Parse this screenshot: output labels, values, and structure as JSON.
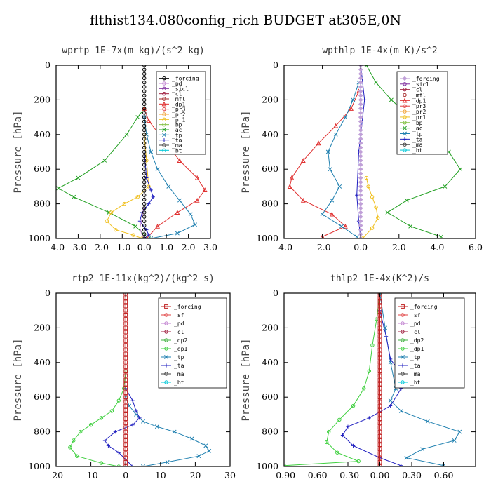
{
  "page": {
    "title": "flthist134.080config_rich  BUDGET at305E,0N"
  },
  "chart_data": [
    {
      "type": "line",
      "title": "wprtp  1E-7x(m kg)/(s^2 kg)",
      "xlabel": "",
      "ylabel": "Pressure [hPa]",
      "xlim": [
        -4.0,
        3.0
      ],
      "ylim": [
        1000,
        0
      ],
      "xticks": [
        -4.0,
        -3.0,
        -2.0,
        -1.0,
        0.0,
        1.0,
        2.0,
        3.0
      ],
      "xtick_labels": [
        "-4.0",
        "-3.0",
        "-2.0",
        "-1.0",
        "0.0",
        "1.0",
        "2.0",
        "3.0"
      ],
      "yticks": [
        0,
        200,
        400,
        600,
        800,
        1000
      ],
      "legend_entries": [
        "_forcing",
        "_pd",
        "_sicl",
        "_cl",
        "_mfl",
        "_dp1",
        "_pr3",
        "_pr2",
        "_pr1",
        "_bp",
        "_ac",
        "_tp",
        "_ta",
        "_ma",
        "_bt"
      ],
      "series": [
        {
          "name": "_ac",
          "color": "#22a022",
          "marker": "x",
          "x": [
            0.0,
            -0.3,
            -0.8,
            -1.8,
            -3.0,
            -3.9,
            -3.2,
            -1.6,
            -0.4,
            0.2
          ],
          "y": [
            250,
            300,
            400,
            550,
            650,
            710,
            760,
            850,
            930,
            1000
          ]
        },
        {
          "name": "_dp1",
          "color": "#e03030",
          "marker": "tri",
          "x": [
            0.0,
            0.2,
            0.8,
            1.6,
            2.4,
            2.75,
            2.4,
            1.5,
            0.6,
            0.1
          ],
          "y": [
            250,
            320,
            420,
            550,
            650,
            720,
            780,
            850,
            930,
            1000
          ]
        },
        {
          "name": "_tp",
          "color": "#2080b0",
          "marker": "x",
          "x": [
            0.0,
            0.1,
            0.3,
            0.6,
            1.1,
            1.6,
            2.1,
            2.3,
            1.5,
            0.3
          ],
          "y": [
            300,
            400,
            500,
            600,
            700,
            780,
            860,
            920,
            970,
            1000
          ]
        },
        {
          "name": "_pr1",
          "color": "#f0c020",
          "marker": "o",
          "x": [
            0.0,
            0.1,
            0.2,
            -0.3,
            -0.9,
            -1.5,
            -1.7,
            -1.3,
            -0.5,
            -0.1
          ],
          "y": [
            400,
            550,
            700,
            760,
            800,
            850,
            900,
            950,
            980,
            1000
          ]
        },
        {
          "name": "_ta",
          "color": "#2020c0",
          "marker": "plus",
          "x": [
            0.0,
            0.1,
            0.3,
            0.4,
            0.2,
            -0.1,
            -0.2,
            0.1,
            0.2,
            0.0
          ],
          "y": [
            500,
            650,
            720,
            760,
            800,
            850,
            900,
            950,
            980,
            1000
          ]
        },
        {
          "name": "_pd",
          "color": "#c080d0",
          "marker": "none",
          "x": [
            0.0,
            0.0,
            -0.1,
            -0.2,
            -0.1,
            0.0
          ],
          "y": [
            600,
            800,
            880,
            940,
            980,
            1000
          ]
        },
        {
          "name": "_forcing",
          "color": "#000000",
          "marker": "o",
          "x": [
            0,
            0,
            0,
            0,
            0,
            0,
            0,
            0,
            0,
            0,
            0,
            0,
            0,
            0,
            0,
            0,
            0,
            0,
            0,
            0,
            0,
            0,
            0,
            0,
            0,
            0,
            0,
            0,
            0,
            0,
            0,
            0,
            0,
            0,
            0,
            0,
            0,
            0,
            0,
            0,
            0
          ],
          "y": [
            0,
            25,
            50,
            75,
            100,
            125,
            150,
            175,
            200,
            225,
            250,
            275,
            300,
            325,
            350,
            375,
            400,
            425,
            450,
            475,
            500,
            525,
            550,
            575,
            600,
            625,
            650,
            675,
            700,
            725,
            750,
            775,
            800,
            825,
            850,
            875,
            900,
            925,
            950,
            975,
            1000
          ]
        }
      ]
    },
    {
      "type": "line",
      "title": "wpthlp  1E-4x(m K)/s^2",
      "xlabel": "",
      "ylabel": "Pressure [hPa]",
      "xlim": [
        -4.0,
        6.0
      ],
      "ylim": [
        1000,
        0
      ],
      "xticks": [
        -4.0,
        -2.0,
        0.0,
        2.0,
        4.0,
        6.0
      ],
      "xtick_labels": [
        "-4.0",
        "-2.0",
        "0.0",
        "2.0",
        "4.0",
        "6.0"
      ],
      "yticks": [
        0,
        200,
        400,
        600,
        800,
        1000
      ],
      "legend_entries": [
        "_forcing",
        "_sicl",
        "_cl",
        "_mfl",
        "_dp1",
        "_pr3",
        "_pr2",
        "_pr1",
        "_bp",
        "_ac",
        "_tp",
        "_ta",
        "_ma",
        "_bt"
      ],
      "series": [
        {
          "name": "_ac",
          "color": "#22a022",
          "marker": "x",
          "x": [
            0.3,
            0.8,
            1.6,
            2.6,
            3.6,
            4.6,
            5.2,
            4.4,
            2.4,
            1.4,
            2.6,
            4.2
          ],
          "y": [
            0,
            100,
            200,
            300,
            400,
            500,
            600,
            700,
            780,
            850,
            930,
            990
          ]
        },
        {
          "name": "_dp1",
          "color": "#e03030",
          "marker": "tri",
          "x": [
            -0.1,
            -0.5,
            -1.3,
            -2.2,
            -3.0,
            -3.6,
            -3.7,
            -3.0,
            -1.5,
            -0.8,
            -2.0
          ],
          "y": [
            150,
            250,
            350,
            450,
            550,
            650,
            700,
            780,
            860,
            930,
            990
          ]
        },
        {
          "name": "_tp",
          "color": "#2080b0",
          "marker": "x",
          "x": [
            -0.1,
            -0.4,
            -0.8,
            -1.3,
            -1.7,
            -1.6,
            -1.1,
            -1.5,
            -2.0,
            -1.0,
            -0.2
          ],
          "y": [
            100,
            200,
            300,
            400,
            500,
            600,
            700,
            780,
            860,
            930,
            990
          ]
        },
        {
          "name": "_pr1",
          "color": "#f0c020",
          "marker": "o",
          "x": [
            0.3,
            0.4,
            0.6,
            0.8,
            0.9,
            0.6,
            0.1
          ],
          "y": [
            650,
            700,
            760,
            820,
            880,
            940,
            1000
          ]
        },
        {
          "name": "_ta",
          "color": "#2020c0",
          "marker": "plus",
          "x": [
            0.0,
            0.2,
            -0.1,
            -0.2,
            -0.1,
            0.0
          ],
          "y": [
            0,
            200,
            500,
            750,
            900,
            1000
          ]
        },
        {
          "name": "_bt",
          "color": "#00c8d8",
          "marker": "none",
          "x": [
            0,
            0,
            0,
            0,
            0
          ],
          "y": [
            0,
            250,
            500,
            750,
            1000
          ]
        },
        {
          "name": "_forcing",
          "color": "#c0a0d8",
          "marker": "diamond",
          "x": [
            0,
            0,
            0,
            0,
            0,
            0,
            0,
            0,
            0,
            0,
            0,
            0,
            0,
            0,
            0,
            0,
            0,
            0,
            0,
            0,
            0,
            0,
            0,
            0,
            0,
            0,
            0,
            0,
            0,
            0,
            0,
            0,
            0,
            0,
            0,
            0,
            0,
            0,
            0,
            0,
            0
          ],
          "y": [
            0,
            25,
            50,
            75,
            100,
            125,
            150,
            175,
            200,
            225,
            250,
            275,
            300,
            325,
            350,
            375,
            400,
            425,
            450,
            475,
            500,
            525,
            550,
            575,
            600,
            625,
            650,
            675,
            700,
            725,
            750,
            775,
            800,
            825,
            850,
            875,
            900,
            925,
            950,
            975,
            1000
          ]
        }
      ]
    },
    {
      "type": "line",
      "title": "rtp2  1E-11x(kg^2)/(kg^2 s)",
      "xlabel": "",
      "ylabel": "Pressure [hPa]",
      "xlim": [
        -20,
        30
      ],
      "ylim": [
        1000,
        0
      ],
      "xticks": [
        -20,
        -10,
        0,
        10,
        20,
        30
      ],
      "xtick_labels": [
        "-20",
        "-10",
        "0",
        "10",
        "20",
        "30"
      ],
      "yticks": [
        0,
        200,
        400,
        600,
        800,
        1000
      ],
      "legend_entries": [
        "_forcing",
        "_sf",
        "_pd",
        "_cl",
        "_dp2",
        "_dp1",
        "_tp",
        "_ta",
        "_ma",
        "_bt"
      ],
      "series": [
        {
          "name": "_dp1",
          "color": "#40d040",
          "marker": "o",
          "x": [
            0,
            -0.5,
            -2,
            -4,
            -7,
            -10,
            -13,
            -15,
            -16,
            -14,
            -7,
            -2
          ],
          "y": [
            450,
            550,
            620,
            680,
            720,
            760,
            800,
            850,
            890,
            940,
            980,
            1000
          ]
        },
        {
          "name": "_tp",
          "color": "#2080b0",
          "marker": "x",
          "x": [
            0,
            1,
            3,
            5,
            9,
            14,
            19,
            23,
            24,
            21,
            12,
            5
          ],
          "y": [
            600,
            650,
            700,
            740,
            770,
            800,
            840,
            880,
            910,
            940,
            975,
            1000
          ]
        },
        {
          "name": "_ta",
          "color": "#2020c0",
          "marker": "plus",
          "x": [
            0,
            2,
            3,
            4,
            2,
            -3,
            -6,
            -5,
            -2,
            0,
            2
          ],
          "y": [
            550,
            620,
            680,
            720,
            760,
            800,
            850,
            880,
            920,
            960,
            1000
          ]
        },
        {
          "name": "_forcing",
          "color": "#c02020",
          "marker": "square",
          "x": [
            0,
            0,
            0,
            0,
            0,
            0,
            0,
            0,
            0,
            0,
            0,
            0,
            0,
            0,
            0,
            0,
            0,
            0,
            0,
            0,
            0,
            0,
            0,
            0,
            0,
            0,
            0,
            0,
            0,
            0,
            0,
            0,
            0,
            0,
            0,
            0,
            0,
            0,
            0,
            0,
            0
          ],
          "y": [
            0,
            25,
            50,
            75,
            100,
            125,
            150,
            175,
            200,
            225,
            250,
            275,
            300,
            325,
            350,
            375,
            400,
            425,
            450,
            475,
            500,
            525,
            550,
            575,
            600,
            625,
            650,
            675,
            700,
            725,
            750,
            775,
            800,
            825,
            850,
            875,
            900,
            925,
            950,
            975,
            1000
          ]
        }
      ]
    },
    {
      "type": "line",
      "title": "thlp2  1E-4x(K^2)/s",
      "xlabel": "",
      "ylabel": "Pressure [hPa]",
      "xlim": [
        -0.9,
        0.9
      ],
      "ylim": [
        1000,
        0
      ],
      "xticks": [
        -0.9,
        -0.6,
        -0.3,
        0.0,
        0.3,
        0.6
      ],
      "xtick_labels": [
        "-0.90",
        "-0.60",
        "-0.30",
        "0.00",
        "0.30",
        "0.60"
      ],
      "yticks": [
        0,
        200,
        400,
        600,
        800,
        1000
      ],
      "legend_entries": [
        "_forcing",
        "_sf",
        "_pd",
        "_cl",
        "_dp2",
        "_dp1",
        "_tp",
        "_ta",
        "_ma",
        "_bt"
      ],
      "series": [
        {
          "name": "_dp1",
          "color": "#40d040",
          "marker": "o",
          "x": [
            0.0,
            -0.03,
            -0.07,
            -0.1,
            -0.15,
            -0.25,
            -0.38,
            -0.48,
            -0.5,
            -0.4,
            -0.2,
            -0.9
          ],
          "y": [
            0,
            150,
            300,
            450,
            550,
            650,
            730,
            800,
            860,
            920,
            970,
            995
          ]
        },
        {
          "name": "_tp",
          "color": "#2080b0",
          "marker": "x",
          "x": [
            0.0,
            0.05,
            0.1,
            0.15,
            0.1,
            0.2,
            0.45,
            0.75,
            0.7,
            0.4,
            0.25,
            0.6
          ],
          "y": [
            0,
            200,
            400,
            550,
            620,
            680,
            740,
            800,
            850,
            900,
            950,
            995
          ]
        },
        {
          "name": "_ta",
          "color": "#2020c0",
          "marker": "plus",
          "x": [
            0.0,
            0.06,
            0.1,
            0.18,
            0.2,
            0.1,
            -0.1,
            -0.3,
            -0.35,
            -0.25,
            0.0,
            0.2
          ],
          "y": [
            100,
            250,
            380,
            450,
            550,
            650,
            720,
            770,
            820,
            880,
            950,
            995
          ]
        },
        {
          "name": "_forcing",
          "color": "#c02020",
          "marker": "square",
          "x": [
            0,
            0,
            0,
            0,
            0,
            0,
            0,
            0,
            0,
            0,
            0,
            0,
            0,
            0,
            0,
            0,
            0,
            0,
            0,
            0,
            0,
            0,
            0,
            0,
            0,
            0,
            0,
            0,
            0,
            0,
            0,
            0,
            0,
            0,
            0,
            0,
            0,
            0,
            0,
            0,
            0
          ],
          "y": [
            0,
            25,
            50,
            75,
            100,
            125,
            150,
            175,
            200,
            225,
            250,
            275,
            300,
            325,
            350,
            375,
            400,
            425,
            450,
            475,
            500,
            525,
            550,
            575,
            600,
            625,
            650,
            675,
            700,
            725,
            750,
            775,
            800,
            825,
            850,
            875,
            900,
            925,
            950,
            975,
            1000
          ]
        }
      ]
    }
  ]
}
